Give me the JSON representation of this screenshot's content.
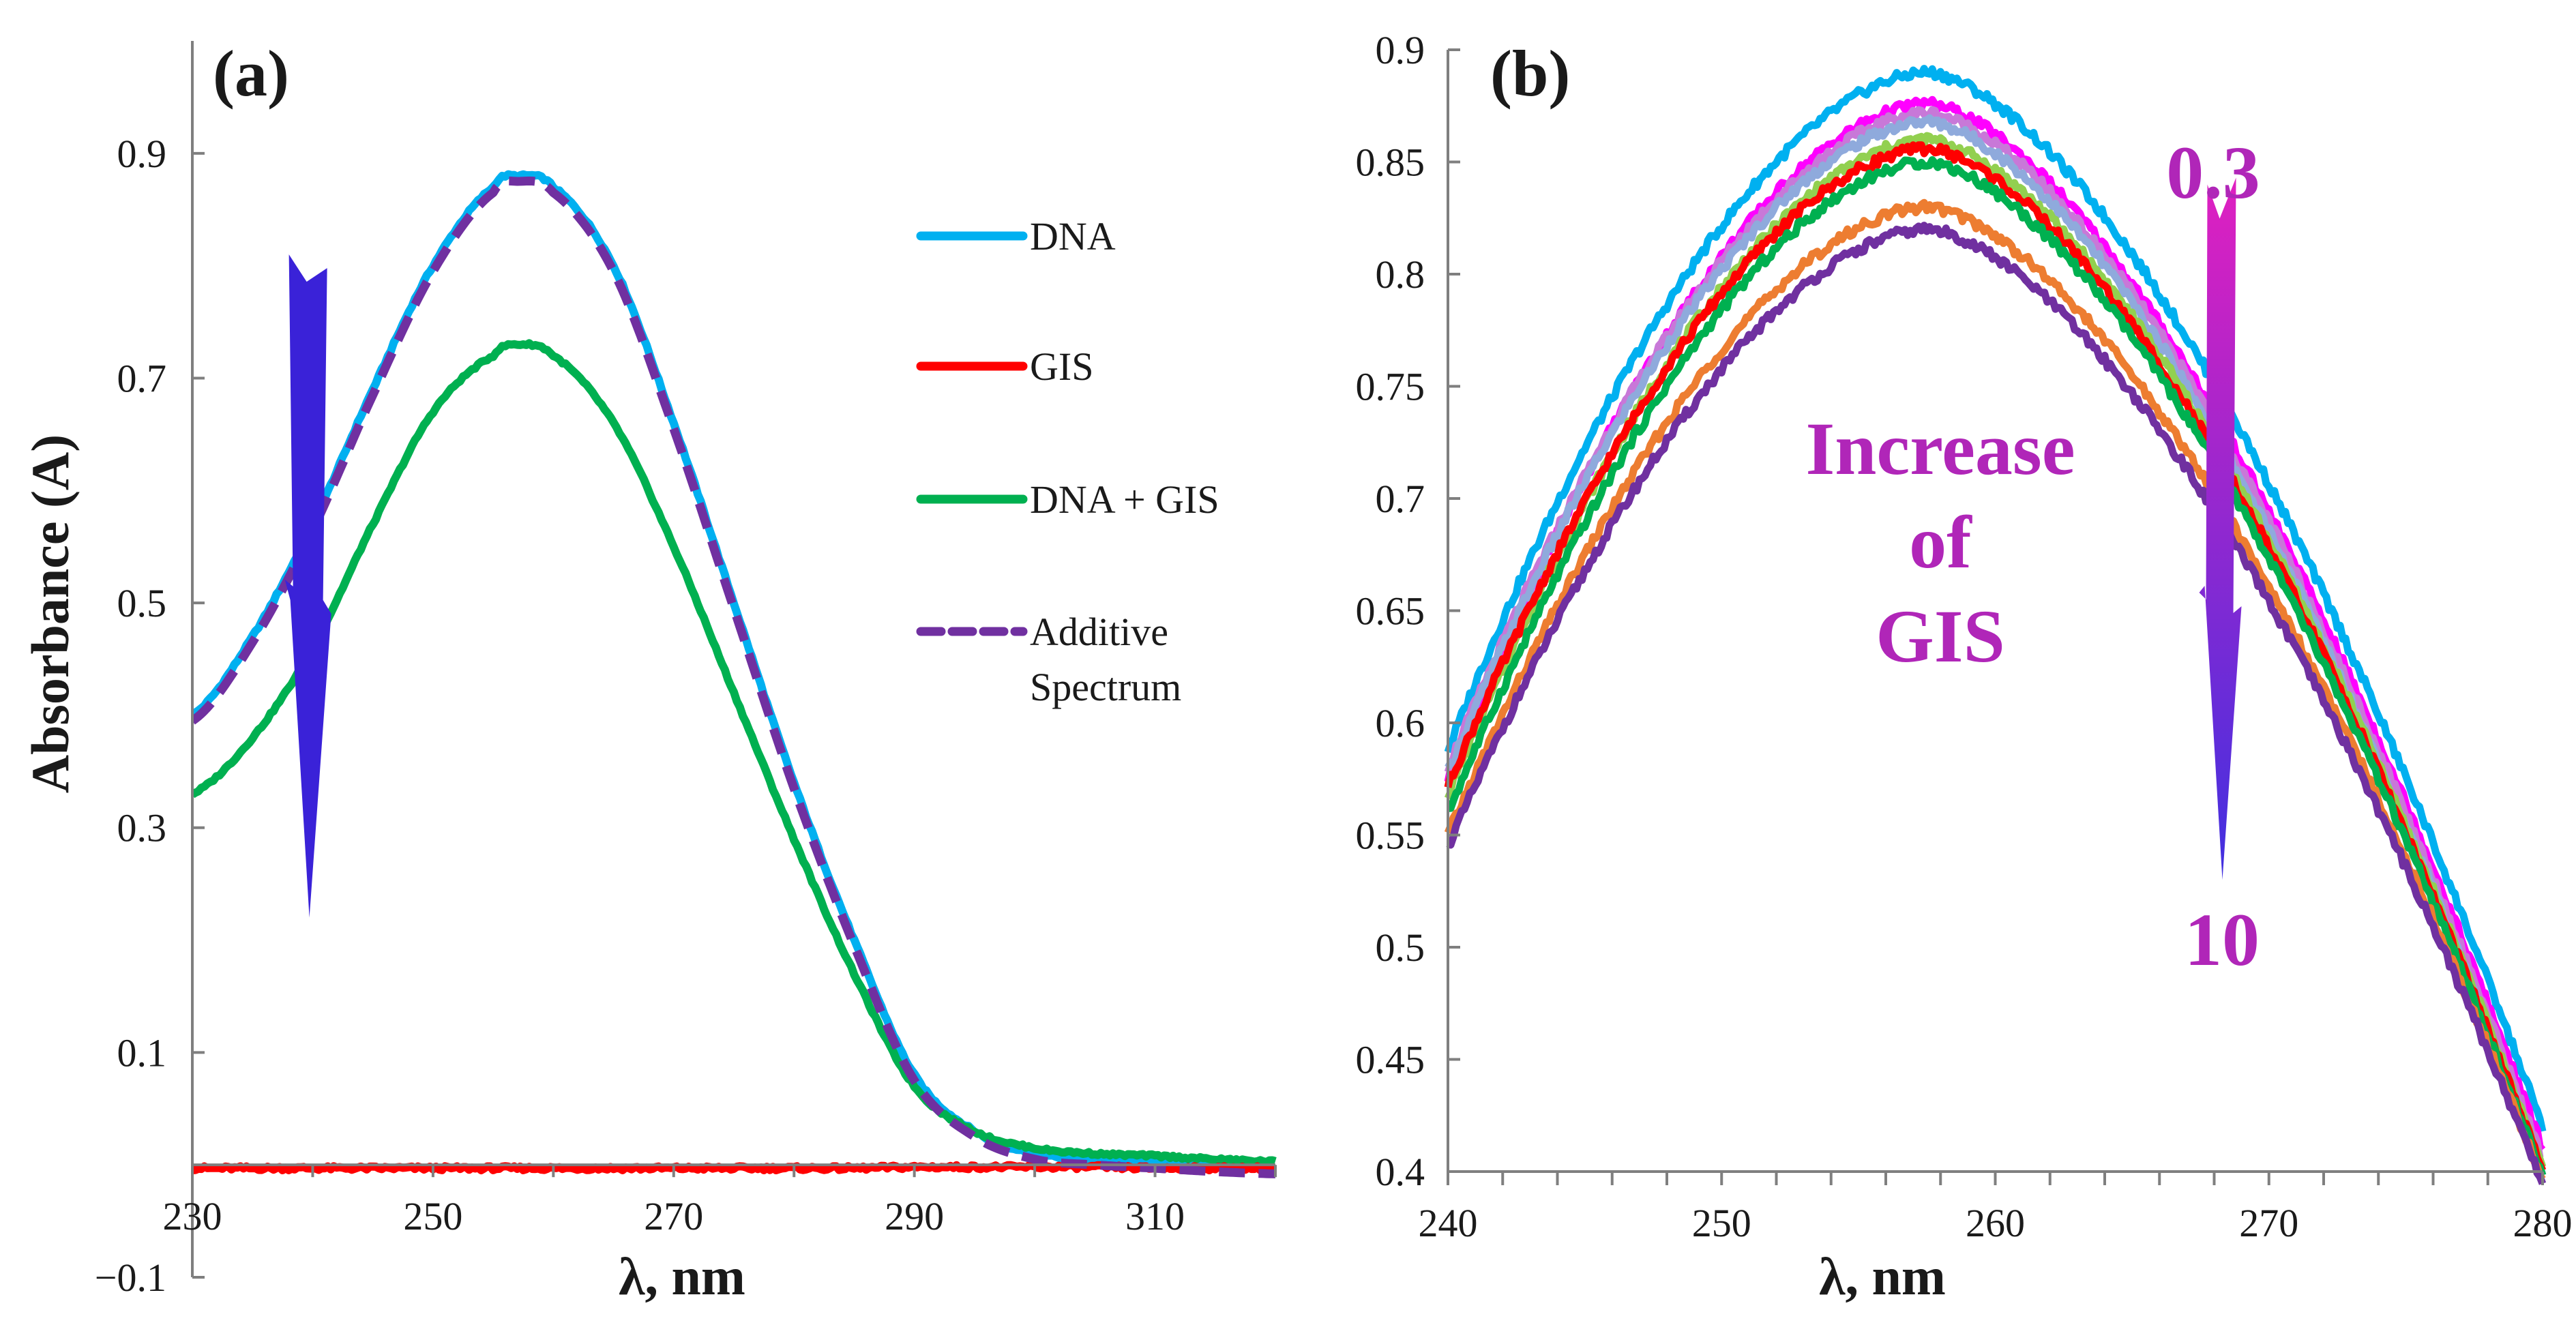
{
  "chart_data": [
    {
      "panel": "(a)",
      "type": "line",
      "xlabel": "λ, nm",
      "ylabel": "Absorbance (A)",
      "xlim": [
        230,
        320
      ],
      "ylim": [
        -0.1,
        1.0
      ],
      "xticks": [
        230,
        250,
        270,
        290,
        310
      ],
      "xtick_labels": [
        "230",
        "250",
        "270",
        "290",
        "310"
      ],
      "yticks": [
        -0.1,
        0.1,
        0.3,
        0.5,
        0.7,
        0.9
      ],
      "ytick_labels": [
        "−0.1",
        "0.1",
        "0.3",
        "0.5",
        "0.7",
        "0.9"
      ],
      "grid": false,
      "legend_position": "right",
      "x": [
        230,
        235,
        240,
        245,
        250,
        255,
        257,
        260,
        265,
        270,
        275,
        280,
        285,
        290,
        295,
        300,
        305,
        310,
        315,
        320
      ],
      "series": [
        {
          "name": "DNA",
          "color": "#00b0f0",
          "dashed": false,
          "values": [
            0.4,
            0.47,
            0.57,
            0.69,
            0.8,
            0.87,
            0.88,
            0.87,
            0.8,
            0.66,
            0.5,
            0.34,
            0.2,
            0.08,
            0.03,
            0.01,
            0.005,
            0.003,
            0.0,
            -0.005
          ]
        },
        {
          "name": "GIS",
          "color": "#ff0000",
          "dashed": false,
          "values": [
            -0.003,
            -0.003,
            -0.003,
            -0.003,
            -0.003,
            -0.003,
            -0.003,
            -0.003,
            -0.003,
            -0.003,
            -0.003,
            -0.003,
            -0.003,
            -0.002,
            -0.002,
            -0.002,
            -0.002,
            -0.003,
            -0.003,
            -0.003
          ]
        },
        {
          "name": "DNA + GIS",
          "color": "#00b050",
          "dashed": false,
          "values": [
            0.33,
            0.38,
            0.46,
            0.57,
            0.67,
            0.72,
            0.73,
            0.72,
            0.66,
            0.55,
            0.42,
            0.29,
            0.17,
            0.07,
            0.03,
            0.015,
            0.01,
            0.008,
            0.005,
            0.003
          ]
        },
        {
          "name": "Additive\nSpectrum",
          "legend_lines": [
            "Additive",
            "Spectrum"
          ],
          "color": "#7030a0",
          "dashed": true,
          "values": [
            0.395,
            0.465,
            0.565,
            0.685,
            0.795,
            0.865,
            0.875,
            0.865,
            0.795,
            0.655,
            0.495,
            0.335,
            0.195,
            0.075,
            0.025,
            0.005,
            0.0,
            -0.003,
            -0.006,
            -0.008
          ]
        }
      ],
      "arrow": {
        "x": 239.5,
        "y_from": 0.81,
        "y_to": 0.22,
        "color": "#3a22d8"
      },
      "legend": [
        {
          "label": "DNA",
          "color": "#00b0f0"
        },
        {
          "label": "GIS",
          "color": "#ff0000"
        },
        {
          "label": "DNA + GIS",
          "color": "#00b050"
        },
        {
          "label": "Additive",
          "label2": "Spectrum",
          "color": "#7030a0",
          "dashed": true
        }
      ]
    },
    {
      "panel": "(b)",
      "type": "line",
      "xlabel": "λ, nm",
      "ylabel": "",
      "xlim": [
        240,
        280
      ],
      "ylim": [
        0.4,
        0.9
      ],
      "xticks": [
        240,
        250,
        260,
        270,
        280
      ],
      "xtick_labels": [
        "240",
        "250",
        "260",
        "270",
        "280"
      ],
      "yticks": [
        0.4,
        0.45,
        0.5,
        0.55,
        0.6,
        0.65,
        0.7,
        0.75,
        0.8,
        0.85,
        0.9
      ],
      "ytick_labels": [
        "0.4",
        "0.45",
        "0.5",
        "0.55",
        "0.6",
        "0.65",
        "0.7",
        "0.75",
        "0.8",
        "0.85",
        "0.9"
      ],
      "grid": false,
      "peak_x": 257.5,
      "series": [
        {
          "color": "#00b0f0",
          "y_start": 0.588,
          "y_peak": 0.89,
          "y_end": 0.42
        },
        {
          "color": "#ff00ff",
          "y_start": 0.575,
          "y_peak": 0.876,
          "y_end": 0.41
        },
        {
          "color": "#c878d8",
          "y_start": 0.58,
          "y_peak": 0.872,
          "y_end": 0.405
        },
        {
          "color": "#8faadc",
          "y_start": 0.578,
          "y_peak": 0.868,
          "y_end": 0.4
        },
        {
          "color": "#92d050",
          "y_start": 0.568,
          "y_peak": 0.86,
          "y_end": 0.402
        },
        {
          "color": "#ff0000",
          "y_start": 0.572,
          "y_peak": 0.856,
          "y_end": 0.4
        },
        {
          "color": "#00b050",
          "y_start": 0.56,
          "y_peak": 0.85,
          "y_end": 0.398
        },
        {
          "color": "#ed7d31",
          "y_start": 0.55,
          "y_peak": 0.83,
          "y_end": 0.396
        },
        {
          "color": "#7030a0",
          "y_start": 0.545,
          "y_peak": 0.82,
          "y_end": 0.395
        }
      ],
      "arrow": {
        "x": 268.2,
        "y_from": 0.843,
        "y_to": 0.53,
        "top_color": "#e020c0",
        "bottom_color": "#4030e0"
      },
      "annotations": {
        "start": "0.3",
        "end": "10",
        "text_lines": [
          "Increase",
          "of",
          "GIS"
        ]
      }
    }
  ]
}
